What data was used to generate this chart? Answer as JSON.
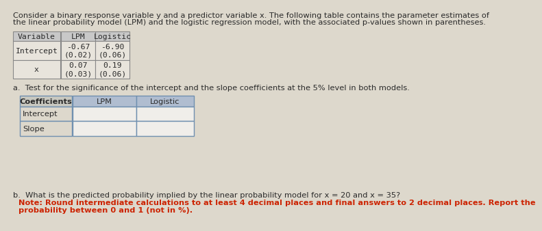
{
  "bg_color": "#ddd8cc",
  "title_text_line1": "Consider a binary response variable y and a predictor variable x. The following table contains the parameter estimates of",
  "title_text_line2": "the linear probability model (LPM) and the logistic regression model, with the associated p-values shown in parentheses.",
  "table1_headers": [
    "Variable",
    "LPM",
    "Logistic"
  ],
  "table1_rows": [
    [
      "Intercept",
      "-0.67",
      "-6.90",
      "(0.02)",
      "(0.06)"
    ],
    [
      "x",
      "0.07",
      "0.19",
      "(0.03)",
      "(0.06)"
    ]
  ],
  "question_a": "a.  Test for the significance of the intercept and the slope coefficients at the 5% level in both models.",
  "table2_headers": [
    "Coefficients",
    "LPM",
    "Logistic"
  ],
  "table2_rows": [
    [
      "Intercept",
      "",
      ""
    ],
    [
      "Slope",
      "",
      ""
    ]
  ],
  "question_b_line1": "b.  What is the predicted probability implied by the linear probability model for x = 20 and x = 35?",
  "question_b_note_line1": "Note: Round intermediate calculations to at least 4 decimal places and final answers to 2 decimal places. Report the",
  "question_b_note_line2": "probability between 0 and 1 (not in %).",
  "font_size": 8.2,
  "text_color": "#2a2a2a",
  "note_color": "#cc2200",
  "table1_header_bg": "#c8c8c8",
  "table1_cell_bg": "#e8e4dc",
  "table1_border": "#888888",
  "table2_header_col0_bg": "#c8c8c0",
  "table2_header_col1_bg": "#b0bdd0",
  "table2_header_col2_bg": "#b0bdd0",
  "table2_cell_col0_bg": "#ddd8cc",
  "table2_cell_bg": "#f0eeea",
  "table2_border": "#7090b0"
}
